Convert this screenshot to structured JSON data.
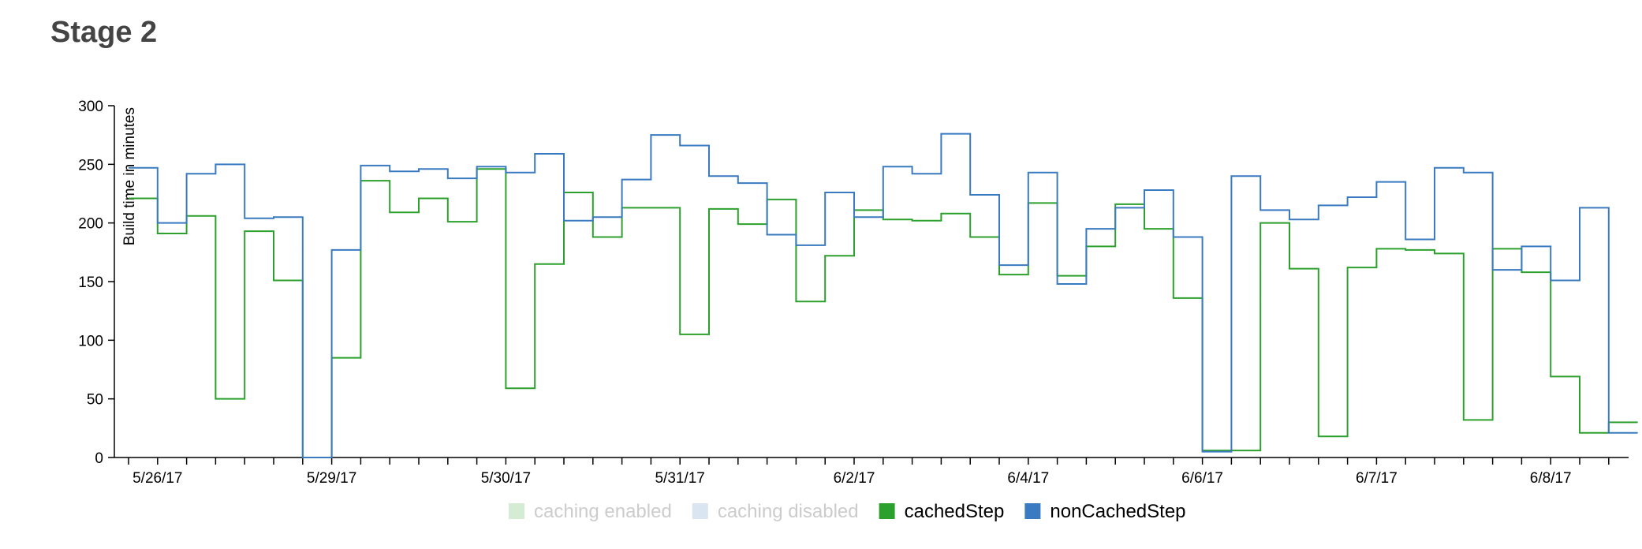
{
  "page": {
    "title": "Stage 2"
  },
  "chart_data": {
    "type": "line",
    "title": "",
    "xlabel": "",
    "ylabel": "Build time in minutes",
    "ylim": [
      0,
      300
    ],
    "yticks": [
      0,
      50,
      100,
      150,
      200,
      250,
      300
    ],
    "xtick_labels": [
      "5/26/17",
      "5/29/17",
      "5/30/17",
      "5/31/17",
      "6/2/17",
      "6/4/17",
      "6/6/17",
      "6/7/17",
      "6/8/17"
    ],
    "xtick_label_indices": [
      1,
      7,
      13,
      19,
      25,
      31,
      37,
      43,
      49
    ],
    "step": true,
    "grid": false,
    "legend_position": "bottom-center",
    "legend": [
      {
        "label": "caching enabled",
        "color": "#d4ecd4",
        "active": false
      },
      {
        "label": "caching disabled",
        "color": "#d9e6f2",
        "active": false
      },
      {
        "label": "cachedStep",
        "color": "#2ca02c",
        "active": true
      },
      {
        "label": "nonCachedStep",
        "color": "#3a7ac0",
        "active": true
      }
    ],
    "series": [
      {
        "name": "cachedStep",
        "color": "#2ca02c",
        "values": [
          221,
          191,
          206,
          50,
          193,
          151,
          0,
          85,
          236,
          209,
          221,
          201,
          246,
          59,
          165,
          226,
          188,
          213,
          213,
          105,
          212,
          199,
          220,
          133,
          172,
          211,
          203,
          202,
          208,
          188,
          156,
          217,
          155,
          180,
          216,
          195,
          136,
          6,
          6,
          200,
          161,
          18,
          162,
          178,
          177,
          174,
          32,
          178,
          158,
          69,
          21,
          30
        ]
      },
      {
        "name": "nonCachedStep",
        "color": "#3a7ac0",
        "values": [
          247,
          200,
          242,
          250,
          204,
          205,
          0,
          177,
          249,
          244,
          246,
          238,
          248,
          243,
          259,
          202,
          205,
          237,
          275,
          266,
          240,
          234,
          190,
          181,
          226,
          205,
          248,
          242,
          276,
          224,
          164,
          243,
          148,
          195,
          213,
          228,
          188,
          5,
          240,
          211,
          203,
          215,
          222,
          235,
          186,
          247,
          243,
          160,
          180,
          151,
          213,
          21
        ]
      }
    ]
  }
}
